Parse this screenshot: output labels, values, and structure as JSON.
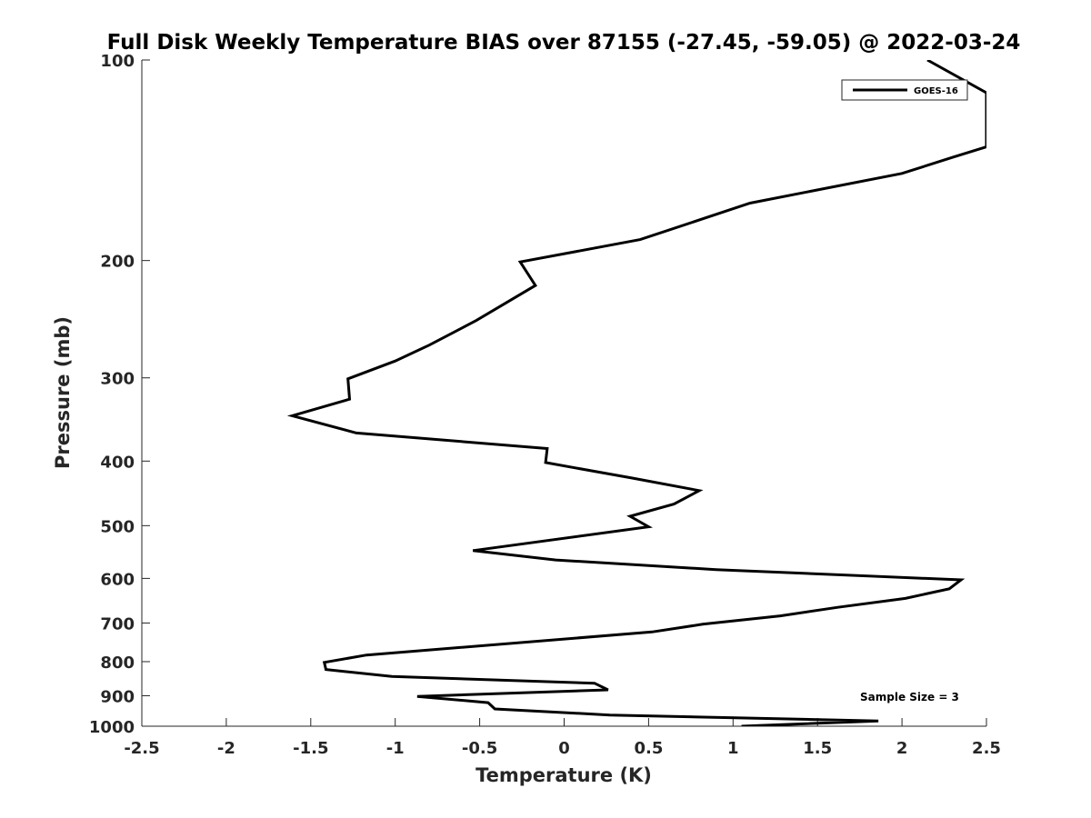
{
  "chart_data": {
    "type": "line",
    "title": "Full Disk Weekly Temperature BIAS over 87155 (-27.45, -59.05) @ 2022-03-24",
    "xlabel": "Temperature (K)",
    "ylabel": "Pressure (mb)",
    "xlim": [
      -2.5,
      2.5
    ],
    "ylim": [
      100,
      1000
    ],
    "yscale": "log",
    "y_reversed": true,
    "xticks": [
      -2.5,
      -2,
      -1.5,
      -1,
      -0.5,
      0,
      0.5,
      1,
      1.5,
      2,
      2.5
    ],
    "xtick_labels": [
      "-2.5",
      "-2",
      "-1.5",
      "-1",
      "-0.5",
      "0",
      "0.5",
      "1",
      "1.5",
      "2",
      "2.5"
    ],
    "yticks": [
      100,
      200,
      300,
      400,
      500,
      600,
      700,
      800,
      900,
      1000
    ],
    "ytick_labels": [
      "100",
      "200",
      "300",
      "400",
      "500",
      "600",
      "700",
      "800",
      "900",
      "1000"
    ],
    "grid": false,
    "legend": {
      "position": "top-right",
      "entries": [
        "GOES-16"
      ]
    },
    "annotation": "Sample Size = 3",
    "line_color": "#000000",
    "series": [
      {
        "name": "GOES-16",
        "points": [
          {
            "x": 2.15,
            "y": 100
          },
          {
            "x": 2.5,
            "y": 112
          },
          {
            "x": 2.5,
            "y": 135
          },
          {
            "x": 2.3,
            "y": 140
          },
          {
            "x": 2.0,
            "y": 148
          },
          {
            "x": 1.1,
            "y": 164
          },
          {
            "x": 0.45,
            "y": 186
          },
          {
            "x": -0.26,
            "y": 201
          },
          {
            "x": -0.17,
            "y": 218
          },
          {
            "x": -0.52,
            "y": 246
          },
          {
            "x": -0.8,
            "y": 268
          },
          {
            "x": -1.0,
            "y": 283
          },
          {
            "x": -1.28,
            "y": 301
          },
          {
            "x": -1.27,
            "y": 323
          },
          {
            "x": -1.61,
            "y": 342
          },
          {
            "x": -1.23,
            "y": 363
          },
          {
            "x": -0.1,
            "y": 383
          },
          {
            "x": -0.11,
            "y": 402
          },
          {
            "x": 0.4,
            "y": 424
          },
          {
            "x": 0.8,
            "y": 443
          },
          {
            "x": 0.65,
            "y": 464
          },
          {
            "x": 0.39,
            "y": 484
          },
          {
            "x": 0.5,
            "y": 502
          },
          {
            "x": -0.54,
            "y": 545
          },
          {
            "x": -0.05,
            "y": 563
          },
          {
            "x": 0.9,
            "y": 582
          },
          {
            "x": 2.35,
            "y": 603
          },
          {
            "x": 2.28,
            "y": 622
          },
          {
            "x": 2.02,
            "y": 643
          },
          {
            "x": 1.62,
            "y": 663
          },
          {
            "x": 1.28,
            "y": 683
          },
          {
            "x": 0.82,
            "y": 703
          },
          {
            "x": 0.52,
            "y": 722
          },
          {
            "x": -1.17,
            "y": 782
          },
          {
            "x": -1.42,
            "y": 802
          },
          {
            "x": -1.41,
            "y": 822
          },
          {
            "x": -1.02,
            "y": 842
          },
          {
            "x": 0.18,
            "y": 862
          },
          {
            "x": 0.26,
            "y": 882
          },
          {
            "x": -0.87,
            "y": 902
          },
          {
            "x": -0.45,
            "y": 922
          },
          {
            "x": -0.41,
            "y": 942
          },
          {
            "x": 0.27,
            "y": 962
          },
          {
            "x": 1.86,
            "y": 982
          },
          {
            "x": 1.05,
            "y": 1000
          }
        ]
      }
    ]
  }
}
